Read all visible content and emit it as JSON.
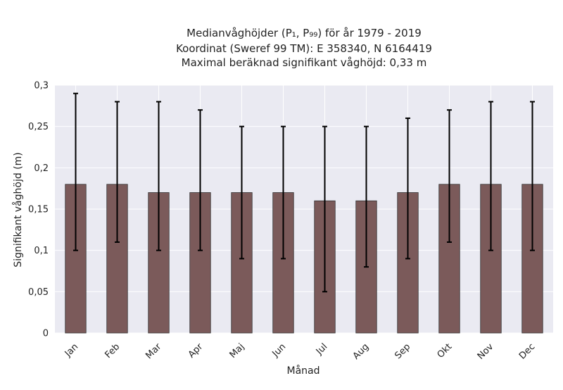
{
  "chart_data": {
    "type": "bar",
    "title_lines": [
      "Medianvåghöjder (P₁, P₉₉) för år 1979 - 2019",
      "Koordinat (Sweref 99 TM): E 358340, N 6164419",
      "Maximal beräknad signifikant våghöjd: 0,33 m"
    ],
    "xlabel": "Månad",
    "ylabel": "Signifikant våghöjd (m)",
    "categories": [
      "Jan",
      "Feb",
      "Mar",
      "Apr",
      "Maj",
      "Jun",
      "Jul",
      "Aug",
      "Sep",
      "Okt",
      "Nov",
      "Dec"
    ],
    "series": [
      {
        "values": [
          0.18,
          0.18,
          0.17,
          0.17,
          0.17,
          0.17,
          0.16,
          0.16,
          0.17,
          0.18,
          0.18,
          0.18
        ],
        "p1": [
          0.1,
          0.11,
          0.1,
          0.1,
          0.09,
          0.09,
          0.05,
          0.08,
          0.09,
          0.11,
          0.1,
          0.1
        ],
        "p99": [
          0.29,
          0.28,
          0.28,
          0.27,
          0.25,
          0.25,
          0.25,
          0.25,
          0.26,
          0.27,
          0.28,
          0.28
        ]
      }
    ],
    "ylim": [
      0,
      0.3
    ],
    "yticks": [
      0,
      0.05,
      0.1,
      0.15,
      0.2,
      0.25,
      0.3
    ],
    "ytick_labels": [
      "0",
      "0,05",
      "0,1",
      "0,15",
      "0,2",
      "0,25",
      "0,3"
    ],
    "grid": true,
    "colors": {
      "bar": "#7b5a5a",
      "bar_edge": "#333333",
      "error_bar": "#000000",
      "background": "#eaeaf2",
      "grid": "#ffffff"
    }
  }
}
